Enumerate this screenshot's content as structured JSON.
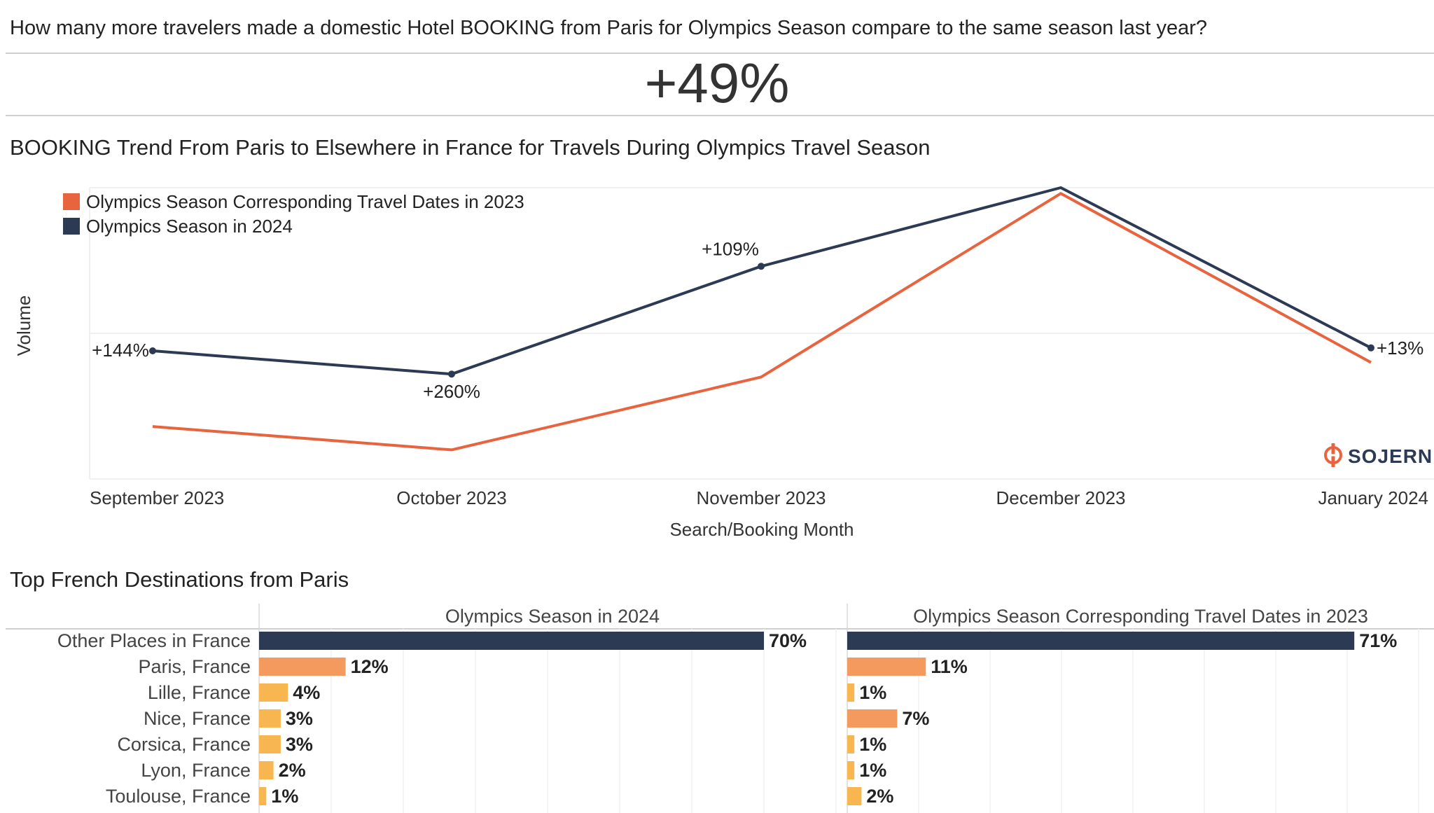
{
  "question": "How many more travelers made a domestic Hotel BOOKING from Paris for Olympics Season compare to the same season last year?",
  "kpi": "+49%",
  "trend_title": "BOOKING Trend From Paris to Elsewhere in France for Travels During Olympics Travel Season",
  "logo_text": "SOJERN",
  "colors": {
    "series_2023": "#e8643e",
    "series_2024": "#2c3a54",
    "bar_top": "#2c3a54",
    "bar_mid": "#f59a5e",
    "bar_low": "#f8b651"
  },
  "chart_data": [
    {
      "type": "line",
      "xlabel": "Search/Booking Month",
      "ylabel": "Volume",
      "categories": [
        "September 2023",
        "October 2023",
        "November 2023",
        "December 2023",
        "January 2024"
      ],
      "ylim": [
        0,
        100
      ],
      "grid": true,
      "legend_position": "top-left",
      "series": [
        {
          "name": "Olympics Season Corresponding Travel Dates in 2023",
          "color": "#e8643e",
          "values": [
            18,
            10,
            35,
            98,
            40
          ]
        },
        {
          "name": "Olympics Season in 2024",
          "color": "#2c3a54",
          "values": [
            44,
            36,
            73,
            100,
            45
          ]
        }
      ],
      "annotations": [
        "+144%",
        "+260%",
        "+109%",
        "",
        "+13%"
      ]
    },
    {
      "type": "bar",
      "title": "Top French Destinations from Paris",
      "categories": [
        "Other Places in France",
        "Paris, France",
        "Lille, France",
        "Nice, France",
        "Corsica, France",
        "Lyon, France",
        "Toulouse, France"
      ],
      "series": [
        {
          "name": "Olympics Season in 2024",
          "values": [
            70,
            12,
            4,
            3,
            3,
            2,
            1
          ],
          "labels": [
            "70%",
            "12%",
            "4%",
            "3%",
            "3%",
            "2%",
            "1%"
          ]
        },
        {
          "name": "Olympics Season Corresponding Travel Dates in 2023",
          "values": [
            71,
            11,
            1,
            7,
            1,
            1,
            2
          ],
          "labels": [
            "71%",
            "11%",
            "1%",
            "7%",
            "1%",
            "1%",
            "2%"
          ]
        }
      ]
    }
  ]
}
